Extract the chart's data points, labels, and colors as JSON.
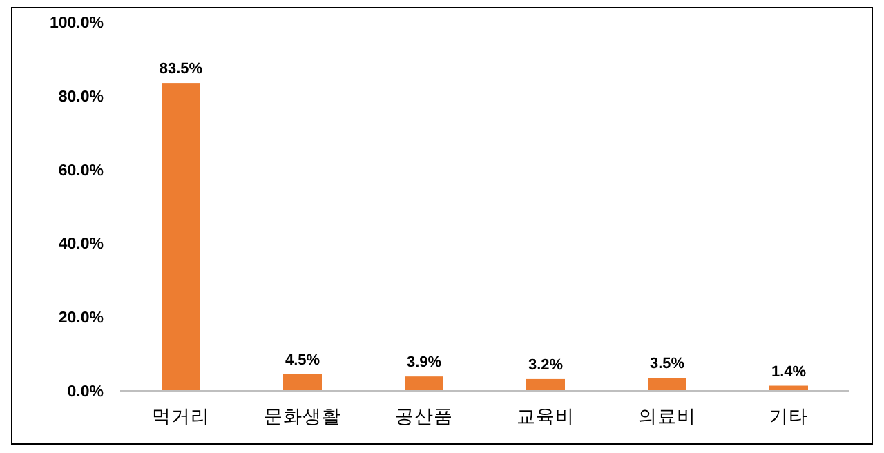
{
  "chart_data": {
    "type": "bar",
    "categories": [
      "먹거리",
      "문화생활",
      "공산품",
      "교육비",
      "의료비",
      "기타"
    ],
    "values": [
      83.5,
      4.5,
      3.9,
      3.2,
      3.5,
      1.4
    ],
    "value_labels": [
      "83.5%",
      "4.5%",
      "3.9%",
      "3.2%",
      "3.5%",
      "1.4%"
    ],
    "color": "#ed7d31",
    "ylim": [
      0,
      100
    ],
    "yticks": [
      {
        "value": 0,
        "label": "0.0%"
      },
      {
        "value": 20,
        "label": "20.0%"
      },
      {
        "value": 40,
        "label": "40.0%"
      },
      {
        "value": 60,
        "label": "60.0%"
      },
      {
        "value": 80,
        "label": "80.0%"
      },
      {
        "value": 100,
        "label": "100.0%"
      }
    ],
    "grid": false
  }
}
